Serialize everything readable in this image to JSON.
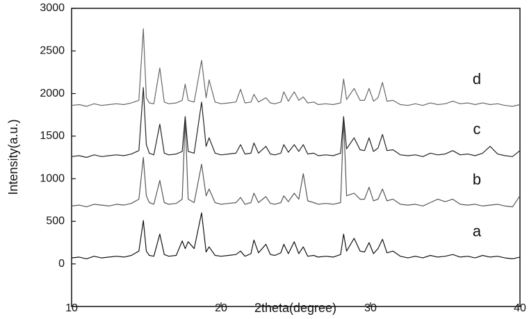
{
  "chart_data": {
    "type": "line",
    "x_label": "2theta(degree)",
    "y_label": "Intensity(a.u.)",
    "xlim": [
      10,
      40
    ],
    "xticks": [
      10,
      20,
      30,
      40
    ],
    "ylim": [
      -500,
      3000
    ],
    "yticks": [
      0,
      500,
      1000,
      1500,
      2000,
      2500,
      3000
    ],
    "x": [
      10,
      10.5,
      11,
      11.5,
      12,
      12.5,
      13,
      13.5,
      14,
      14.5,
      14.8,
      15,
      15.2,
      15.5,
      15.9,
      16.2,
      16.5,
      17,
      17.4,
      17.6,
      17.8,
      18.2,
      18.7,
      19,
      19.2,
      19.6,
      20,
      20.5,
      21,
      21.3,
      21.6,
      22,
      22.2,
      22.5,
      23,
      23.3,
      23.6,
      24,
      24.2,
      24.5,
      24.9,
      25.2,
      25.5,
      25.8,
      26.2,
      26.5,
      27,
      27.5,
      28,
      28.2,
      28.4,
      28.9,
      29.3,
      29.6,
      29.9,
      30.2,
      30.5,
      30.8,
      31.1,
      31.5,
      32,
      32.5,
      33,
      33.5,
      34,
      34.5,
      35,
      35.5,
      36,
      36.5,
      37,
      37.5,
      38,
      38.5,
      39,
      39.5,
      40
    ],
    "series": [
      {
        "name": "a",
        "color": "#111111",
        "values": [
          70,
          80,
          60,
          90,
          70,
          80,
          90,
          80,
          100,
          150,
          510,
          150,
          100,
          90,
          350,
          110,
          90,
          100,
          270,
          180,
          260,
          180,
          600,
          140,
          200,
          100,
          90,
          100,
          110,
          150,
          90,
          120,
          280,
          130,
          230,
          110,
          100,
          130,
          230,
          120,
          260,
          120,
          200,
          90,
          100,
          80,
          90,
          80,
          110,
          350,
          150,
          300,
          150,
          140,
          250,
          120,
          180,
          290,
          130,
          150,
          90,
          70,
          90,
          70,
          100,
          80,
          90,
          110,
          80,
          90,
          70,
          100,
          80,
          90,
          70,
          60,
          80
        ]
      },
      {
        "name": "b",
        "color": "#555555",
        "values": [
          680,
          690,
          670,
          700,
          690,
          680,
          700,
          690,
          710,
          760,
          1250,
          800,
          720,
          700,
          980,
          720,
          700,
          710,
          760,
          1700,
          760,
          720,
          1170,
          800,
          880,
          720,
          700,
          710,
          720,
          780,
          700,
          720,
          830,
          720,
          790,
          710,
          700,
          720,
          800,
          730,
          830,
          760,
          1060,
          740,
          720,
          700,
          710,
          700,
          720,
          1700,
          800,
          830,
          760,
          760,
          900,
          740,
          760,
          880,
          740,
          760,
          700,
          690,
          700,
          680,
          720,
          760,
          730,
          760,
          700,
          690,
          700,
          680,
          690,
          700,
          680,
          670,
          800
        ]
      },
      {
        "name": "c",
        "color": "#222222",
        "values": [
          1260,
          1270,
          1250,
          1280,
          1260,
          1270,
          1280,
          1270,
          1290,
          1330,
          2070,
          1400,
          1300,
          1280,
          1640,
          1300,
          1280,
          1290,
          1320,
          1730,
          1320,
          1300,
          1900,
          1380,
          1480,
          1300,
          1280,
          1290,
          1300,
          1400,
          1290,
          1300,
          1420,
          1300,
          1380,
          1290,
          1280,
          1300,
          1400,
          1310,
          1400,
          1320,
          1400,
          1290,
          1300,
          1270,
          1280,
          1270,
          1300,
          1730,
          1350,
          1480,
          1340,
          1330,
          1480,
          1320,
          1360,
          1520,
          1330,
          1340,
          1280,
          1270,
          1280,
          1260,
          1300,
          1280,
          1290,
          1330,
          1280,
          1290,
          1270,
          1300,
          1380,
          1290,
          1270,
          1260,
          1330
        ]
      },
      {
        "name": "d",
        "color": "#666666",
        "values": [
          1860,
          1870,
          1850,
          1880,
          1860,
          1870,
          1880,
          1870,
          1890,
          1920,
          2760,
          1950,
          1890,
          1880,
          2300,
          1900,
          1880,
          1890,
          1920,
          2110,
          1920,
          1900,
          2390,
          1950,
          2160,
          1900,
          1880,
          1890,
          1900,
          2050,
          1890,
          1900,
          1990,
          1900,
          1950,
          1890,
          1880,
          1900,
          2020,
          1910,
          2020,
          1920,
          1960,
          1890,
          1900,
          1870,
          1880,
          1870,
          1890,
          2170,
          1930,
          2060,
          1920,
          1920,
          2060,
          1910,
          1950,
          2130,
          1910,
          1920,
          1870,
          1860,
          1880,
          1860,
          1890,
          1870,
          1880,
          1910,
          1880,
          1890,
          1870,
          1890,
          1870,
          1880,
          1860,
          1850,
          1870
        ]
      }
    ]
  }
}
